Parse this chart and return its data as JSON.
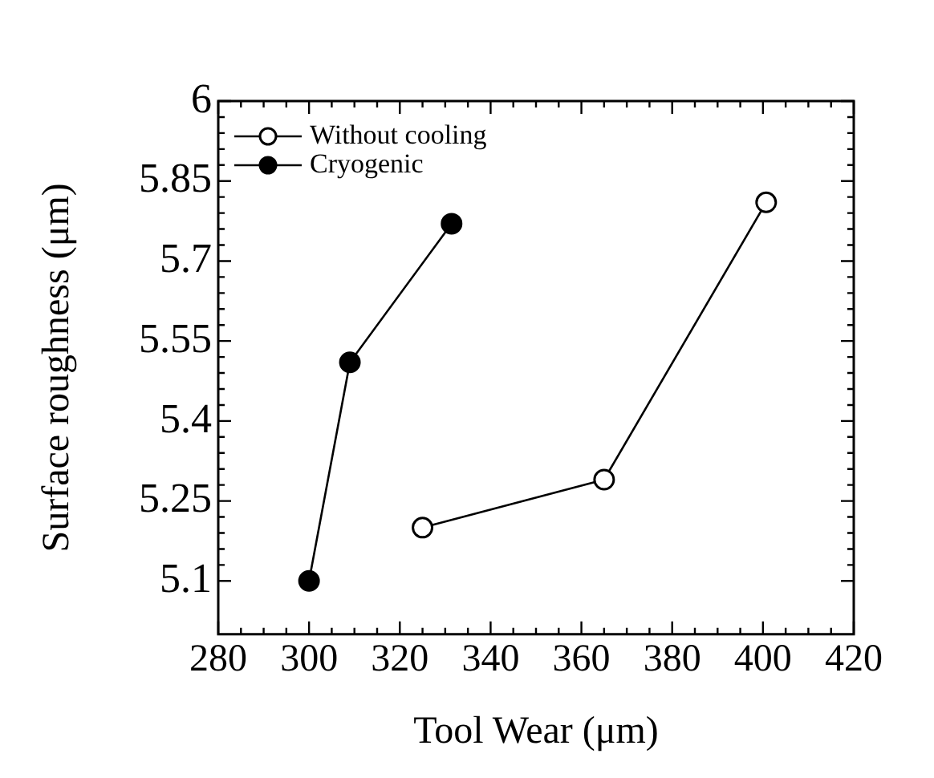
{
  "chart_data": {
    "type": "line",
    "xlabel": "Tool Wear (μm)",
    "ylabel": "Surface roughness (μm)",
    "xlim": [
      280,
      420
    ],
    "xticks": [
      280,
      300,
      320,
      340,
      360,
      380,
      400,
      420
    ],
    "ylim": [
      5.0,
      6.0
    ],
    "yticks": [
      5.1,
      5.25,
      5.4,
      5.55,
      5.7,
      5.85,
      6
    ],
    "series": [
      {
        "name": "Without cooling",
        "color": "#000000",
        "colors": [
          "#ffffff",
          "#ffffff",
          "#ffffff"
        ],
        "x": [
          325,
          365,
          400.7
        ],
        "values": [
          5.2,
          5.29,
          5.81
        ]
      },
      {
        "name": "Cryogenic",
        "color": "#000000",
        "colors": [
          "#000000",
          "#000000",
          "#000000"
        ],
        "x": [
          300,
          309,
          331.4
        ],
        "values": [
          5.1,
          5.51,
          5.77
        ]
      }
    ],
    "marker": "circle",
    "line_style": "solid",
    "legend": "top left",
    "grid": false
  }
}
